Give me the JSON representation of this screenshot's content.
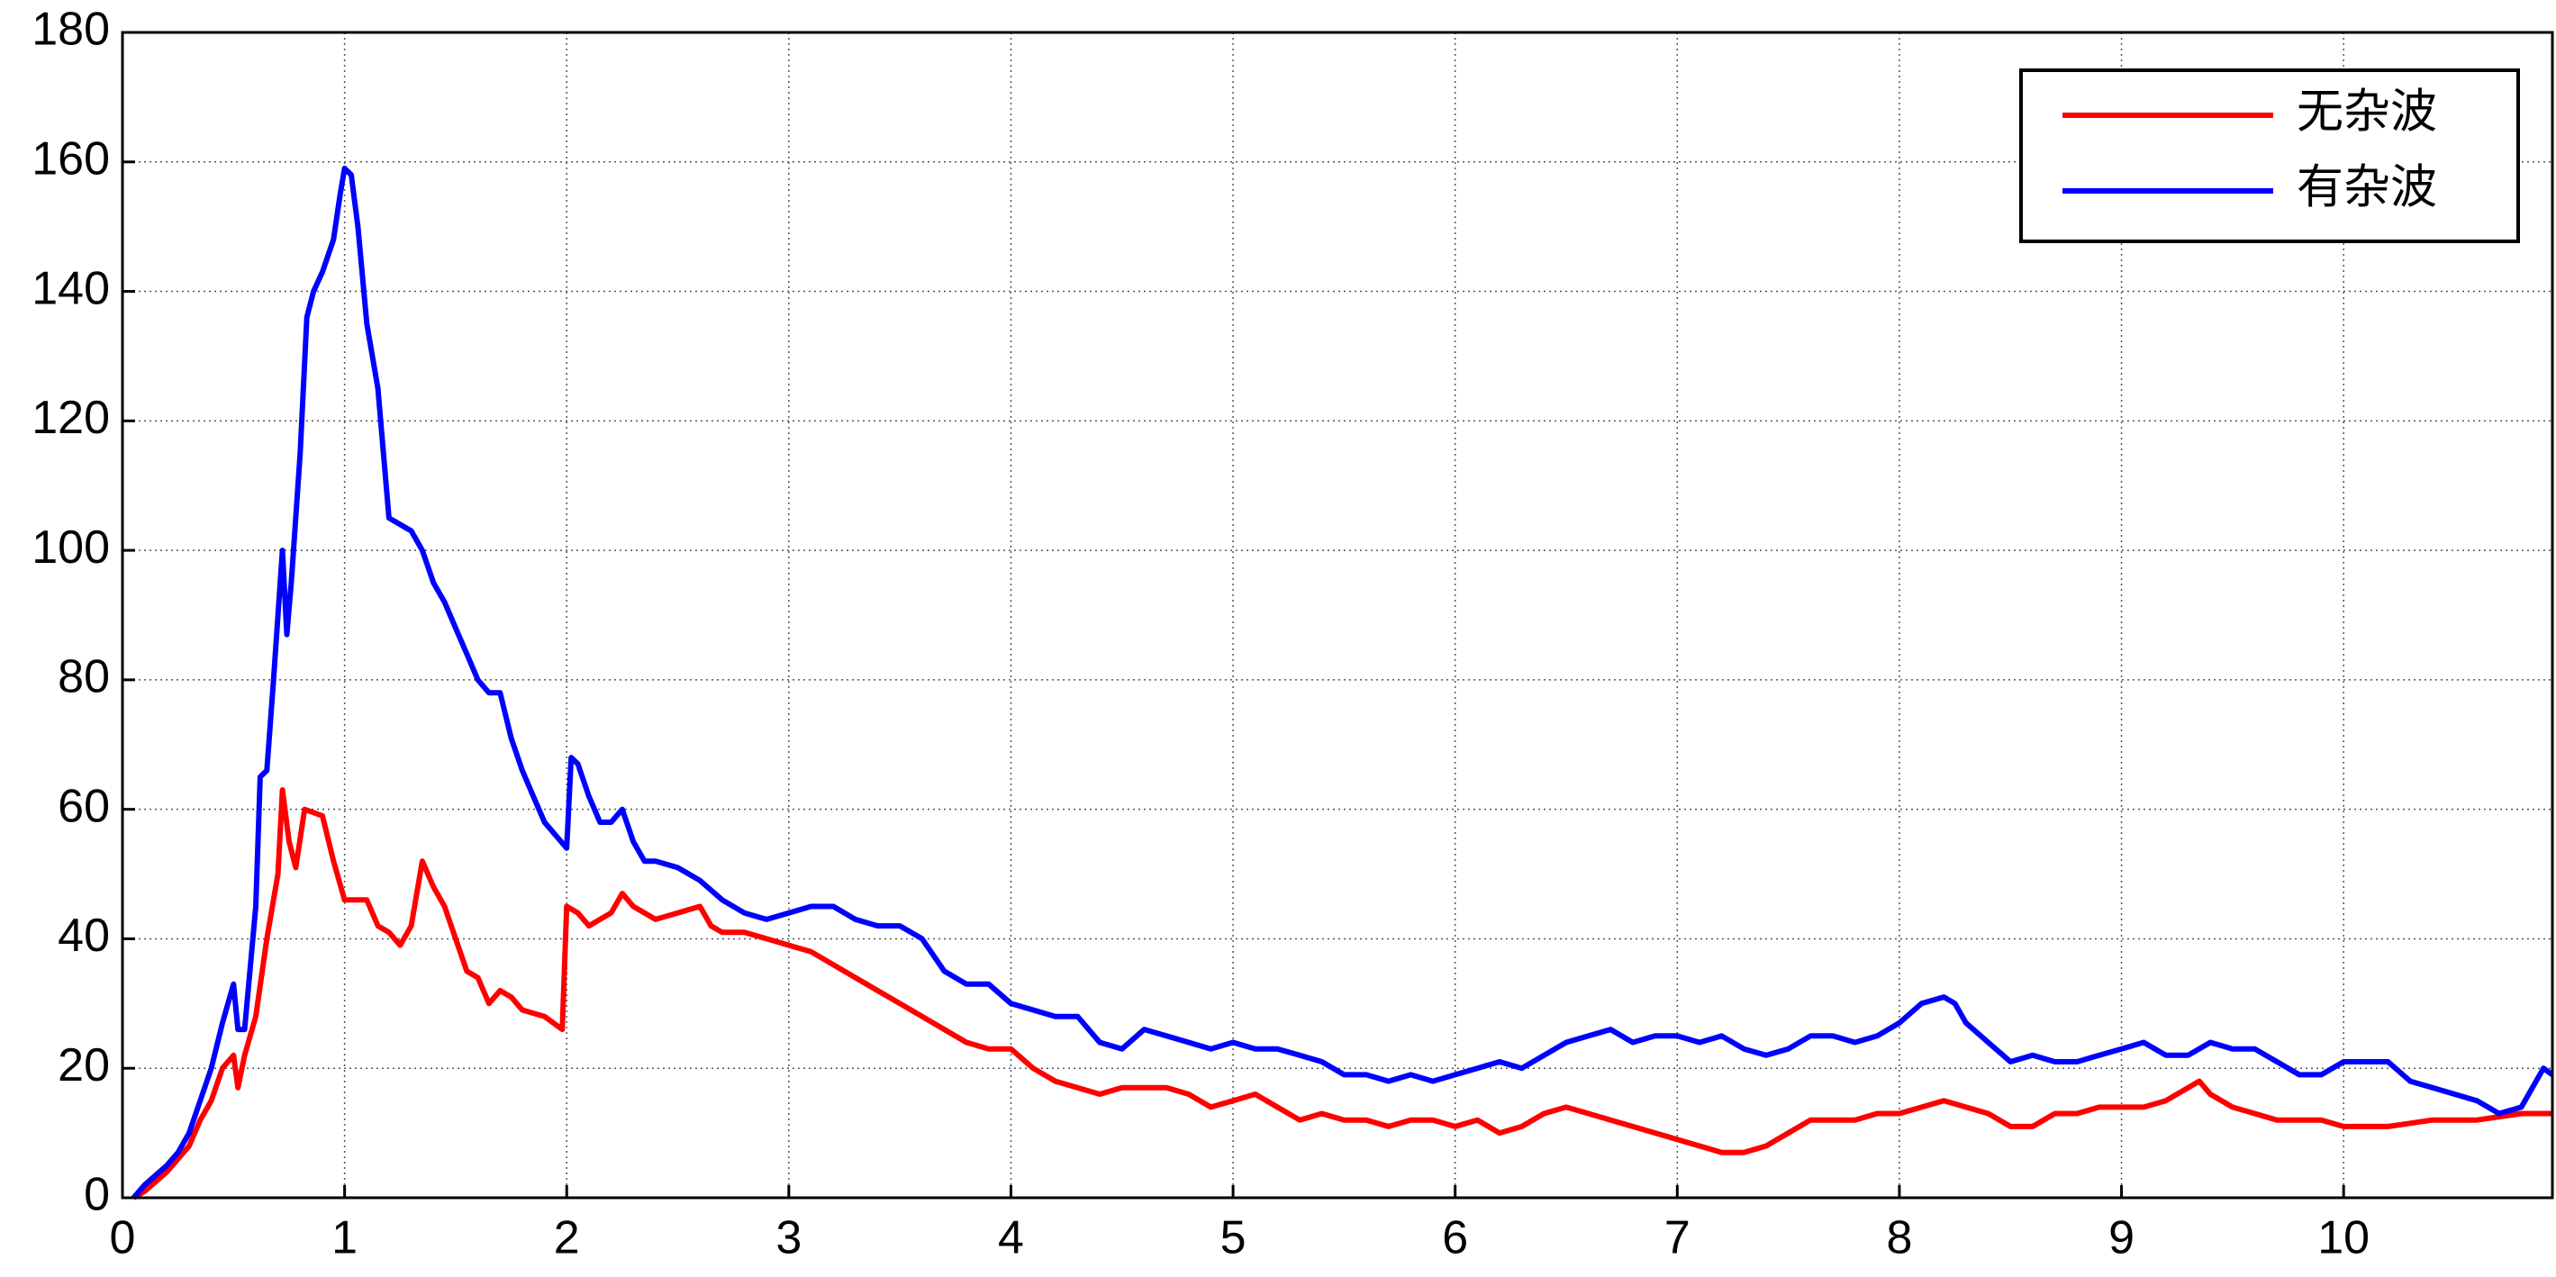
{
  "chart_data": {
    "type": "line",
    "xlim": [
      0,
      10.94
    ],
    "ylim": [
      0,
      180
    ],
    "xticks": [
      0,
      1,
      2,
      3,
      4,
      5,
      6,
      7,
      8,
      9,
      10
    ],
    "yticks": [
      0,
      20,
      40,
      60,
      80,
      100,
      120,
      140,
      160,
      180
    ],
    "grid": true,
    "legend": "upper right",
    "series": [
      {
        "name": "无杂波",
        "color": "#ff0000",
        "x": [
          0.05,
          0.1,
          0.2,
          0.3,
          0.35,
          0.4,
          0.45,
          0.5,
          0.52,
          0.55,
          0.6,
          0.65,
          0.7,
          0.72,
          0.75,
          0.78,
          0.82,
          0.9,
          0.95,
          1.0,
          1.05,
          1.1,
          1.15,
          1.2,
          1.25,
          1.3,
          1.35,
          1.4,
          1.45,
          1.5,
          1.55,
          1.6,
          1.65,
          1.7,
          1.75,
          1.8,
          1.9,
          1.98,
          2.0,
          2.05,
          2.1,
          2.2,
          2.25,
          2.3,
          2.4,
          2.5,
          2.6,
          2.65,
          2.7,
          2.8,
          2.9,
          3.0,
          3.1,
          3.2,
          3.3,
          3.4,
          3.5,
          3.6,
          3.7,
          3.8,
          3.9,
          4.0,
          4.1,
          4.2,
          4.4,
          4.5,
          4.6,
          4.7,
          4.8,
          4.9,
          5.0,
          5.1,
          5.2,
          5.3,
          5.4,
          5.5,
          5.6,
          5.7,
          5.8,
          5.9,
          6.0,
          6.1,
          6.2,
          6.3,
          6.4,
          6.5,
          6.6,
          6.7,
          6.8,
          6.9,
          7.0,
          7.1,
          7.2,
          7.3,
          7.4,
          7.5,
          7.6,
          7.7,
          7.8,
          7.9,
          8.0,
          8.1,
          8.2,
          8.3,
          8.4,
          8.5,
          8.6,
          8.7,
          8.8,
          8.9,
          9.0,
          9.1,
          9.2,
          9.3,
          9.35,
          9.4,
          9.5,
          9.6,
          9.7,
          9.8,
          9.9,
          10.0,
          10.2,
          10.4,
          10.6,
          10.8,
          10.94
        ],
        "values": [
          0,
          1,
          4,
          8,
          12,
          15,
          20,
          22,
          17,
          22,
          28,
          40,
          50,
          63,
          55,
          51,
          60,
          59,
          52,
          46,
          46,
          46,
          42,
          41,
          39,
          42,
          52,
          48,
          45,
          40,
          35,
          34,
          30,
          32,
          31,
          29,
          28,
          26,
          45,
          44,
          42,
          44,
          47,
          45,
          43,
          44,
          45,
          42,
          41,
          41,
          40,
          39,
          38,
          36,
          34,
          32,
          30,
          28,
          26,
          24,
          23,
          23,
          20,
          18,
          16,
          17,
          17,
          17,
          16,
          14,
          15,
          16,
          14,
          12,
          13,
          12,
          12,
          11,
          12,
          12,
          11,
          12,
          10,
          11,
          13,
          14,
          13,
          12,
          11,
          10,
          9,
          8,
          7,
          7,
          8,
          10,
          12,
          12,
          12,
          13,
          13,
          14,
          15,
          14,
          13,
          11,
          11,
          13,
          13,
          14,
          14,
          14,
          15,
          17,
          18,
          16,
          14,
          13,
          12,
          12,
          12,
          11,
          11,
          12,
          12,
          13,
          13
        ]
      },
      {
        "name": "有杂波",
        "color": "#0000ff",
        "x": [
          0.05,
          0.1,
          0.2,
          0.25,
          0.3,
          0.35,
          0.4,
          0.45,
          0.5,
          0.52,
          0.55,
          0.6,
          0.62,
          0.65,
          0.68,
          0.72,
          0.74,
          0.76,
          0.8,
          0.83,
          0.86,
          0.9,
          0.95,
          0.98,
          1.0,
          1.03,
          1.06,
          1.1,
          1.15,
          1.2,
          1.25,
          1.3,
          1.35,
          1.4,
          1.45,
          1.5,
          1.55,
          1.6,
          1.65,
          1.7,
          1.75,
          1.8,
          1.85,
          1.9,
          1.95,
          2.0,
          2.02,
          2.05,
          2.1,
          2.15,
          2.2,
          2.25,
          2.3,
          2.35,
          2.4,
          2.5,
          2.6,
          2.7,
          2.8,
          2.9,
          3.0,
          3.1,
          3.2,
          3.3,
          3.4,
          3.5,
          3.6,
          3.7,
          3.8,
          3.9,
          4.0,
          4.1,
          4.2,
          4.3,
          4.4,
          4.5,
          4.6,
          4.7,
          4.8,
          4.9,
          5.0,
          5.1,
          5.2,
          5.3,
          5.4,
          5.5,
          5.6,
          5.7,
          5.8,
          5.9,
          6.0,
          6.1,
          6.2,
          6.3,
          6.4,
          6.5,
          6.6,
          6.7,
          6.8,
          6.9,
          7.0,
          7.1,
          7.2,
          7.3,
          7.4,
          7.5,
          7.6,
          7.7,
          7.8,
          7.9,
          8.0,
          8.1,
          8.2,
          8.25,
          8.3,
          8.4,
          8.5,
          8.6,
          8.7,
          8.8,
          8.9,
          9.0,
          9.1,
          9.2,
          9.3,
          9.4,
          9.5,
          9.6,
          9.7,
          9.8,
          9.9,
          10.0,
          10.1,
          10.2,
          10.3,
          10.4,
          10.5,
          10.6,
          10.7,
          10.8,
          10.9,
          10.94
        ],
        "values": [
          0,
          2,
          5,
          7,
          10,
          15,
          20,
          27,
          33,
          26,
          26,
          45,
          65,
          66,
          80,
          100,
          87,
          95,
          115,
          136,
          140,
          143,
          148,
          155,
          159,
          158,
          150,
          135,
          125,
          105,
          104,
          103,
          100,
          95,
          92,
          88,
          84,
          80,
          78,
          78,
          71,
          66,
          62,
          58,
          56,
          54,
          68,
          67,
          62,
          58,
          58,
          60,
          55,
          52,
          52,
          51,
          49,
          46,
          44,
          43,
          44,
          45,
          45,
          43,
          42,
          42,
          40,
          35,
          33,
          33,
          30,
          29,
          28,
          28,
          24,
          23,
          26,
          25,
          24,
          23,
          24,
          23,
          23,
          22,
          21,
          19,
          19,
          18,
          19,
          18,
          19,
          20,
          21,
          20,
          22,
          24,
          25,
          26,
          24,
          25,
          25,
          24,
          25,
          23,
          22,
          23,
          25,
          25,
          24,
          25,
          27,
          30,
          31,
          30,
          27,
          24,
          21,
          22,
          21,
          21,
          22,
          23,
          24,
          22,
          22,
          24,
          23,
          23,
          21,
          19,
          19,
          21,
          21,
          21,
          18,
          17,
          16,
          15,
          13,
          14,
          20,
          19
        ]
      }
    ]
  }
}
